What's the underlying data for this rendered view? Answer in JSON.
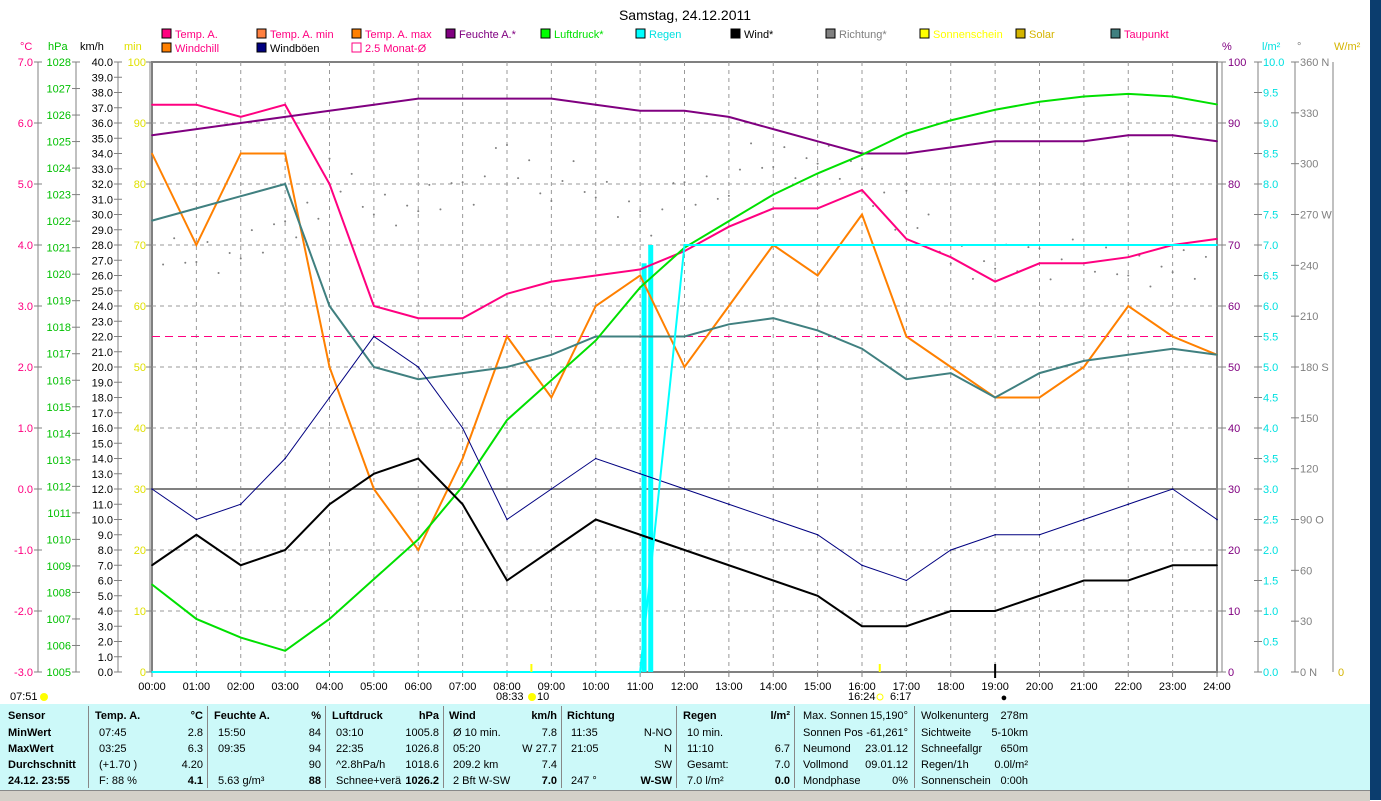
{
  "title": "Samstag, 24.12.2011",
  "legend": [
    {
      "label": "Temp. A.",
      "swatch": "#ff0080",
      "text": "#ff0080"
    },
    {
      "label": "Temp. A. min",
      "swatch": "#ff8040",
      "text": "#ff0080"
    },
    {
      "label": "Temp. A. max",
      "swatch": "#ff8000",
      "text": "#ff0080"
    },
    {
      "label": "Feuchte A.*",
      "swatch": "#800080",
      "text": "#800080"
    },
    {
      "label": "Luftdruck*",
      "swatch": "#00ff00",
      "text": "#00e000"
    },
    {
      "label": "Regen",
      "swatch": "#00ffff",
      "text": "#00e0e0"
    },
    {
      "label": "Wind*",
      "swatch": "#000000",
      "text": "#000000"
    },
    {
      "label": "Richtung*",
      "swatch": "#808080",
      "text": "#808080"
    },
    {
      "label": "Sonnenschein",
      "swatch": "#ffff00",
      "text": "#ffff00"
    },
    {
      "label": "Solar",
      "swatch": "#d4b400",
      "text": "#d4b400"
    },
    {
      "label": "Taupunkt",
      "swatch": "#408080",
      "text": "#ff0080"
    },
    {
      "label": "Windchill",
      "swatch": "#ff8000",
      "text": "#ff0080"
    },
    {
      "label": "Windböen",
      "swatch": "#000080",
      "text": "#000000"
    },
    {
      "label": "2.5 Monat-Ø",
      "swatch": "none",
      "text": "#ff0080"
    }
  ],
  "chart_data": {
    "type": "line",
    "title": "Samstag, 24.12.2011",
    "x_ticks": [
      "00:00",
      "01:00",
      "02:00",
      "03:00",
      "04:00",
      "05:00",
      "06:00",
      "07:00",
      "08:00",
      "09:00",
      "10:00",
      "11:00",
      "12:00",
      "13:00",
      "14:00",
      "15:00",
      "16:00",
      "17:00",
      "18:00",
      "19:00",
      "20:00",
      "21:00",
      "22:00",
      "23:00",
      "24:00"
    ],
    "axes": {
      "temp": {
        "unit": "°C",
        "color": "#ff0080",
        "range": [
          -3,
          7
        ],
        "ticks": [
          "7.0",
          "6.0",
          "5.0",
          "4.0",
          "3.0",
          "2.0",
          "1.0",
          "0.0",
          "-1.0",
          "-2.0",
          "-3.0"
        ]
      },
      "pressure": {
        "unit": "hPa",
        "color": "#00c000",
        "range": [
          1005,
          1028
        ],
        "ticks": [
          "1028",
          "1027",
          "1026",
          "1025",
          "1024",
          "1023",
          "1022",
          "1021",
          "1020",
          "1019",
          "1018",
          "1017",
          "1016",
          "1015",
          "1014",
          "1013",
          "1012",
          "1011",
          "1010",
          "1009",
          "1008",
          "1007",
          "1006",
          "1005"
        ]
      },
      "wind": {
        "unit": "km/h",
        "color": "#000000",
        "range": [
          0,
          40
        ],
        "ticks": [
          "40.0",
          "39.0",
          "38.0",
          "37.0",
          "36.0",
          "35.0",
          "34.0",
          "33.0",
          "32.0",
          "31.0",
          "30.0",
          "29.0",
          "28.0",
          "27.0",
          "26.0",
          "25.0",
          "24.0",
          "23.0",
          "22.0",
          "21.0",
          "20.0",
          "19.0",
          "18.0",
          "17.0",
          "16.0",
          "15.0",
          "14.0",
          "13.0",
          "12.0",
          "11.0",
          "10.0",
          "9.0",
          "8.0",
          "7.0",
          "6.0",
          "5.0",
          "4.0",
          "3.0",
          "2.0",
          "1.0",
          "0.0"
        ]
      },
      "min": {
        "unit": "min",
        "color": "#e0e000",
        "range": [
          0,
          100
        ],
        "ticks": [
          "100",
          "90",
          "80",
          "70",
          "60",
          "50",
          "40",
          "30",
          "20",
          "10",
          "0"
        ]
      },
      "humidity": {
        "unit": "%",
        "color": "#800080",
        "range": [
          0,
          100
        ],
        "ticks": [
          "100",
          "90",
          "80",
          "70",
          "60",
          "50",
          "40",
          "30",
          "20",
          "10",
          "0"
        ]
      },
      "rain": {
        "unit": "l/m²",
        "color": "#00e0e0",
        "range": [
          0,
          10
        ],
        "ticks": [
          "10.0",
          "9.5",
          "9.0",
          "8.5",
          "8.0",
          "7.5",
          "7.0",
          "6.5",
          "6.0",
          "5.5",
          "5.0",
          "4.5",
          "4.0",
          "3.5",
          "3.0",
          "2.5",
          "2.0",
          "1.5",
          "1.0",
          "0.5",
          "0.0"
        ]
      },
      "direction": {
        "unit": "°",
        "color": "#808080",
        "range": [
          0,
          360
        ],
        "ticks": [
          "360 N",
          "330",
          "300",
          "270 W",
          "240",
          "210",
          "180 S",
          "150",
          "120",
          "90  O",
          "60",
          "30",
          "0    N"
        ]
      },
      "solar": {
        "unit": "W/m²",
        "color": "#d4b400",
        "ticks": [
          "0"
        ]
      }
    },
    "series": [
      {
        "name": "Temp. A.",
        "axis": "temp",
        "color": "#ff0080",
        "width": 2,
        "values": [
          6.3,
          6.3,
          6.1,
          6.3,
          5.0,
          3.0,
          2.8,
          2.8,
          3.2,
          3.4,
          3.5,
          3.6,
          3.9,
          4.3,
          4.6,
          4.6,
          4.9,
          4.1,
          3.8,
          3.4,
          3.7,
          3.7,
          3.8,
          4.0,
          4.1
        ]
      },
      {
        "name": "Windchill",
        "axis": "temp",
        "color": "#ff8000",
        "width": 2,
        "values": [
          5.5,
          4.0,
          5.5,
          5.5,
          2.0,
          0.0,
          -1.0,
          0.5,
          2.5,
          1.5,
          3.0,
          3.5,
          2.0,
          3.0,
          4.0,
          3.5,
          4.5,
          2.5,
          2.0,
          1.5,
          1.5,
          2.0,
          3.0,
          2.5,
          2.2
        ]
      },
      {
        "name": "Taupunkt",
        "axis": "temp",
        "color": "#408080",
        "width": 2,
        "values": [
          4.4,
          4.6,
          4.8,
          5.0,
          3.0,
          2.0,
          1.8,
          1.9,
          2.0,
          2.2,
          2.5,
          2.5,
          2.5,
          2.7,
          2.8,
          2.6,
          2.3,
          1.8,
          1.9,
          1.5,
          1.9,
          2.1,
          2.2,
          2.3,
          2.2
        ]
      },
      {
        "name": "Feuchte A.*",
        "axis": "humidity",
        "color": "#800080",
        "width": 2,
        "values": [
          88,
          89,
          90,
          91,
          92,
          93,
          94,
          94,
          94,
          94,
          93,
          92,
          92,
          91,
          89,
          87,
          85,
          85,
          86,
          87,
          87,
          87,
          88,
          88,
          87
        ]
      },
      {
        "name": "Luftdruck*",
        "axis": "pressure",
        "color": "#00e000",
        "width": 2,
        "values": [
          1008.3,
          1007,
          1006.3,
          1005.8,
          1007,
          1008.5,
          1010,
          1012,
          1014.5,
          1016,
          1017.5,
          1019.5,
          1021,
          1022,
          1023,
          1023.8,
          1024.5,
          1025.3,
          1025.8,
          1026.2,
          1026.5,
          1026.7,
          1026.8,
          1026.7,
          1026.4
        ]
      },
      {
        "name": "Windböen",
        "axis": "wind",
        "color": "#000080",
        "width": 1,
        "values": [
          12,
          10,
          11,
          14,
          18,
          22,
          20,
          16,
          10,
          12,
          14,
          13,
          12,
          11,
          10,
          9,
          7,
          6,
          8,
          9,
          9,
          10,
          11,
          12,
          10
        ]
      },
      {
        "name": "Wind*",
        "axis": "wind",
        "color": "#000000",
        "width": 2,
        "values": [
          7,
          9,
          7,
          8,
          11,
          13,
          14,
          11,
          6,
          8,
          10,
          9,
          8,
          7,
          6,
          5,
          3,
          3,
          4,
          4,
          5,
          6,
          6,
          7,
          7
        ]
      },
      {
        "name": "Regen",
        "axis": "rain",
        "color": "#00ffff",
        "width": 2,
        "values": [
          0,
          0,
          0,
          0,
          0,
          0,
          0,
          0,
          0,
          0,
          0,
          0,
          7.0,
          7.0,
          7.0,
          7.0,
          7.0,
          7.0,
          7.0,
          7.0,
          7.0,
          7.0,
          7.0,
          7.0,
          7.0
        ]
      }
    ],
    "direction_points": {
      "name": "Richtung*",
      "axis": "direction",
      "color": "#808080",
      "values": [
        240,
        250,
        245,
        260,
        290,
        280,
        275,
        285,
        300,
        290,
        285,
        270,
        280,
        295,
        305,
        300,
        290,
        270,
        250,
        240,
        245,
        240,
        245,
        240,
        240
      ]
    },
    "rain_bars": {
      "axis": "rain",
      "times": [
        11.1,
        11.25
      ],
      "values": [
        6.7,
        7.0
      ]
    },
    "reference_lines": [
      {
        "name": "2.5 Monat-Ø",
        "axis": "temp",
        "value": 2.5,
        "color": "#ff0080"
      }
    ],
    "markers": {
      "sunrise": "08:33",
      "sunrise_extra": "10",
      "sunset": "16:24",
      "sunset_extra": "6:17",
      "start": "07:51",
      "moon": "●"
    }
  },
  "table": {
    "cols": [
      {
        "head": [
          "Sensor",
          ""
        ],
        "rows": [
          [
            "MinWert",
            ""
          ],
          [
            "MaxWert",
            ""
          ],
          [
            "Durchschnitt",
            ""
          ],
          [
            "24.12. 23:55",
            ""
          ]
        ]
      },
      {
        "head": [
          "Temp. A.",
          "°C"
        ],
        "rows": [
          [
            "07:45",
            "2.8"
          ],
          [
            "03:25",
            "6.3"
          ],
          [
            "(+1.70 )",
            "4.20"
          ],
          [
            "F: 88 %",
            "4.1"
          ]
        ]
      },
      {
        "head": [
          "Feuchte A.",
          "%"
        ],
        "rows": [
          [
            "15:50",
            "84"
          ],
          [
            "09:35",
            "94"
          ],
          [
            "",
            "90"
          ],
          [
            "5.63 g/m³",
            "88"
          ]
        ]
      },
      {
        "head": [
          "Luftdruck",
          "hPa"
        ],
        "rows": [
          [
            "03:10",
            "1005.8"
          ],
          [
            "22:35",
            "1026.8"
          ],
          [
            "^2.8hPa/h",
            "1018.6"
          ],
          [
            "Schnee+verä",
            "1026.2"
          ]
        ]
      },
      {
        "head": [
          "Wind",
          "km/h"
        ],
        "rows": [
          [
            "Ø 10 min.",
            "7.8"
          ],
          [
            "05:20",
            "W 27.7"
          ],
          [
            "209.2 km",
            "7.4"
          ],
          [
            "2 Bft W-SW",
            "7.0"
          ]
        ]
      },
      {
        "head": [
          "Richtung",
          ""
        ],
        "rows": [
          [
            "11:35",
            "N-NO"
          ],
          [
            "21:05",
            "N"
          ],
          [
            "",
            "SW"
          ],
          [
            "247 °",
            "W-SW"
          ]
        ]
      },
      {
        "head": [
          "Regen",
          "l/m²"
        ],
        "rows": [
          [
            "10 min.",
            ""
          ],
          [
            "11:10",
            "6.7"
          ],
          [
            "Gesamt:",
            "7.0"
          ],
          [
            "7.0 l/m²",
            "0.0"
          ]
        ]
      }
    ],
    "astro": [
      [
        "Max. Sonnen",
        "15,190°"
      ],
      [
        "Sonnen Pos",
        "-61,261°"
      ],
      [
        "Neumond",
        "23.01.12"
      ],
      [
        "Vollmond",
        "09.01.12"
      ],
      [
        "Mondphase",
        "0%"
      ]
    ],
    "extra": [
      [
        "Wolkenunterg",
        "278m"
      ],
      [
        "Sichtweite",
        "5-10km"
      ],
      [
        "Schneefallgr",
        "650m"
      ],
      [
        "Regen/1h",
        "0.0l/m²"
      ],
      [
        "Sonnenschein",
        "0:00h"
      ]
    ]
  }
}
